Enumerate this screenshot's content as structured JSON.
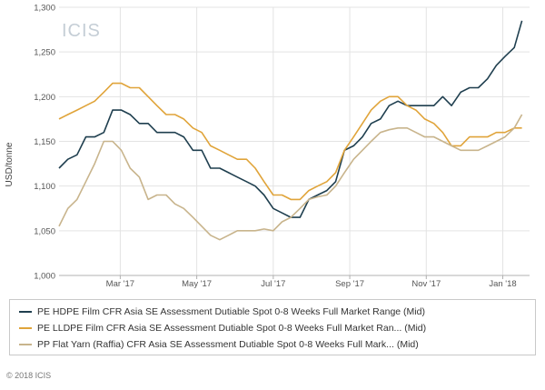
{
  "chart_data": {
    "type": "line",
    "watermark": "ICIS",
    "ylabel": "USD/tonne",
    "ylim": [
      1000,
      1300
    ],
    "yticks": [
      "1,000",
      "1,050",
      "1,100",
      "1,150",
      "1,200",
      "1,250",
      "1,300"
    ],
    "ytick_values": [
      1000,
      1050,
      1100,
      1150,
      1200,
      1250,
      1300
    ],
    "xlim": [
      0,
      12.3
    ],
    "xticks": [
      {
        "label": "Mar '17",
        "value": 1.6
      },
      {
        "label": "May '17",
        "value": 3.6
      },
      {
        "label": "Jul '17",
        "value": 5.6
      },
      {
        "label": "Sep '17",
        "value": 7.6
      },
      {
        "label": "Nov '17",
        "value": 9.6
      },
      {
        "label": "Jan '18",
        "value": 11.6
      }
    ],
    "grid": true,
    "legend_position": "bottom",
    "series": [
      {
        "name": "PE HDPE Film CFR Asia SE Assessment Dutiable Spot 0-8 Weeks Full Market Range (Mid)",
        "color": "#1f3f4f",
        "x": [
          0,
          0.23,
          0.47,
          0.7,
          0.93,
          1.17,
          1.4,
          1.63,
          1.86,
          2.1,
          2.33,
          2.56,
          2.8,
          3.03,
          3.26,
          3.5,
          3.73,
          3.96,
          4.2,
          4.43,
          4.66,
          4.9,
          5.13,
          5.36,
          5.6,
          5.83,
          6.06,
          6.3,
          6.53,
          6.76,
          7.0,
          7.23,
          7.46,
          7.7,
          7.93,
          8.16,
          8.4,
          8.63,
          8.86,
          9.1,
          9.33,
          9.56,
          9.8,
          10.03,
          10.26,
          10.5,
          10.73,
          10.96,
          11.2,
          11.43,
          11.66,
          11.9,
          12.1
        ],
        "values": [
          1120,
          1130,
          1135,
          1155,
          1155,
          1160,
          1185,
          1185,
          1180,
          1170,
          1170,
          1160,
          1160,
          1160,
          1155,
          1140,
          1140,
          1120,
          1120,
          1115,
          1110,
          1105,
          1100,
          1090,
          1075,
          1070,
          1065,
          1065,
          1085,
          1090,
          1095,
          1105,
          1140,
          1145,
          1155,
          1170,
          1175,
          1190,
          1195,
          1190,
          1190,
          1190,
          1190,
          1200,
          1190,
          1205,
          1210,
          1210,
          1220,
          1235,
          1245,
          1255,
          1285
        ]
      },
      {
        "name": "PE LLDPE Film CFR Asia SE Assessment Dutiable Spot 0-8 Weeks Full Market Ran... (Mid)",
        "color": "#e0a43a",
        "x": [
          0,
          0.23,
          0.47,
          0.7,
          0.93,
          1.17,
          1.4,
          1.63,
          1.86,
          2.1,
          2.33,
          2.56,
          2.8,
          3.03,
          3.26,
          3.5,
          3.73,
          3.96,
          4.2,
          4.43,
          4.66,
          4.9,
          5.13,
          5.36,
          5.6,
          5.83,
          6.06,
          6.3,
          6.53,
          6.76,
          7.0,
          7.23,
          7.46,
          7.7,
          7.93,
          8.16,
          8.4,
          8.63,
          8.86,
          9.1,
          9.33,
          9.56,
          9.8,
          10.03,
          10.26,
          10.5,
          10.73,
          10.96,
          11.2,
          11.43,
          11.66,
          11.9,
          12.1
        ],
        "values": [
          1175,
          1180,
          1185,
          1190,
          1195,
          1205,
          1215,
          1215,
          1210,
          1210,
          1200,
          1190,
          1180,
          1180,
          1175,
          1165,
          1160,
          1145,
          1140,
          1135,
          1130,
          1130,
          1120,
          1105,
          1090,
          1090,
          1085,
          1085,
          1095,
          1100,
          1105,
          1115,
          1140,
          1155,
          1170,
          1185,
          1195,
          1200,
          1200,
          1190,
          1185,
          1175,
          1170,
          1160,
          1145,
          1145,
          1155,
          1155,
          1155,
          1160,
          1160,
          1165,
          1165
        ]
      },
      {
        "name": "PP Flat Yarn (Raffia) CFR Asia SE Assessment Dutiable Spot 0-8 Weeks Full Mark... (Mid)",
        "color": "#c8b48c",
        "x": [
          0,
          0.23,
          0.47,
          0.7,
          0.93,
          1.17,
          1.4,
          1.63,
          1.86,
          2.1,
          2.33,
          2.56,
          2.8,
          3.03,
          3.26,
          3.5,
          3.73,
          3.96,
          4.2,
          4.43,
          4.66,
          4.9,
          5.13,
          5.36,
          5.6,
          5.83,
          6.06,
          6.3,
          6.53,
          6.76,
          7.0,
          7.23,
          7.46,
          7.7,
          7.93,
          8.16,
          8.4,
          8.63,
          8.86,
          9.1,
          9.33,
          9.56,
          9.8,
          10.03,
          10.26,
          10.5,
          10.73,
          10.96,
          11.2,
          11.43,
          11.66,
          11.9,
          12.1
        ],
        "values": [
          1055,
          1075,
          1085,
          1105,
          1125,
          1150,
          1150,
          1140,
          1120,
          1110,
          1085,
          1090,
          1090,
          1080,
          1075,
          1065,
          1055,
          1045,
          1040,
          1045,
          1050,
          1050,
          1050,
          1052,
          1050,
          1060,
          1065,
          1075,
          1085,
          1088,
          1090,
          1100,
          1115,
          1130,
          1140,
          1150,
          1160,
          1163,
          1165,
          1165,
          1160,
          1155,
          1155,
          1150,
          1145,
          1140,
          1140,
          1140,
          1145,
          1150,
          1155,
          1165,
          1180
        ]
      }
    ]
  },
  "footer": {
    "copyright": "© 2018 ICIS"
  }
}
